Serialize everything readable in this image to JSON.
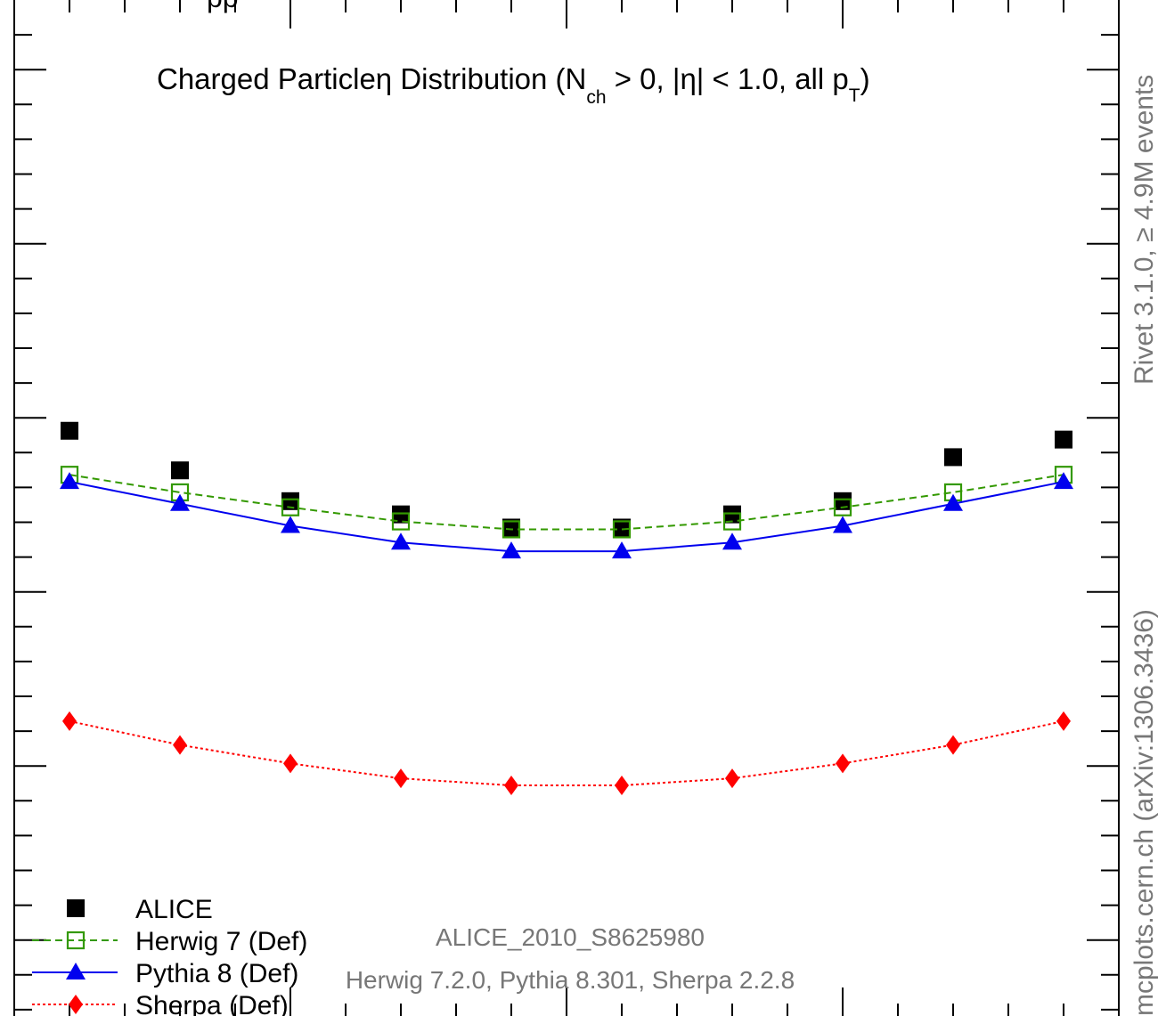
{
  "chart_data": {
    "type": "line",
    "title_parts": {
      "pre": "Charged Particle",
      "eta": "η",
      "mid": " Distribution (N",
      "sub1": "ch",
      "mid2": " > 0, |η| < 1.0, all p",
      "sub2": "T",
      "post": ")"
    },
    "top_left_fragment": "pp",
    "x": [
      -0.9,
      -0.7,
      -0.5,
      -0.3,
      -0.1,
      0.1,
      0.3,
      0.5,
      0.7,
      0.9
    ],
    "xlim": [
      -1.0,
      1.0
    ],
    "ylim": [
      0,
      12
    ],
    "grid": false,
    "legend_placement": "bottom-left",
    "series": [
      {
        "name": "ALICE",
        "color": "#000000",
        "marker": "filled-square",
        "line": "none",
        "values": [
          6.65,
          6.2,
          5.85,
          5.7,
          5.55,
          5.55,
          5.7,
          5.85,
          6.35,
          6.55
        ]
      },
      {
        "name": "Herwig 7 (Def)",
        "color": "#339900",
        "marker": "open-square",
        "line": "dashed",
        "values": [
          6.15,
          5.95,
          5.78,
          5.62,
          5.53,
          5.53,
          5.62,
          5.78,
          5.95,
          6.15
        ]
      },
      {
        "name": "Pythia 8 (Def)",
        "color": "#0000ee",
        "marker": "filled-triangle",
        "line": "solid",
        "values": [
          6.07,
          5.82,
          5.57,
          5.38,
          5.28,
          5.28,
          5.38,
          5.57,
          5.82,
          6.07
        ]
      },
      {
        "name": "Sherpa (Def)",
        "color": "#ff0000",
        "marker": "filled-diamond",
        "line": "dotted",
        "values": [
          3.35,
          3.08,
          2.87,
          2.7,
          2.62,
          2.62,
          2.7,
          2.87,
          3.08,
          3.35
        ]
      }
    ],
    "annotations": {
      "analysis": "ALICE_2010_S8625980",
      "versions": "Herwig 7.2.0, Pythia 8.301, Sherpa 2.2.8"
    },
    "side_labels": {
      "rivet": "Rivet 3.1.0, ≥ 4.9M events",
      "mcplots": "mcplots.cern.ch (arXiv:1306.3436)"
    }
  }
}
